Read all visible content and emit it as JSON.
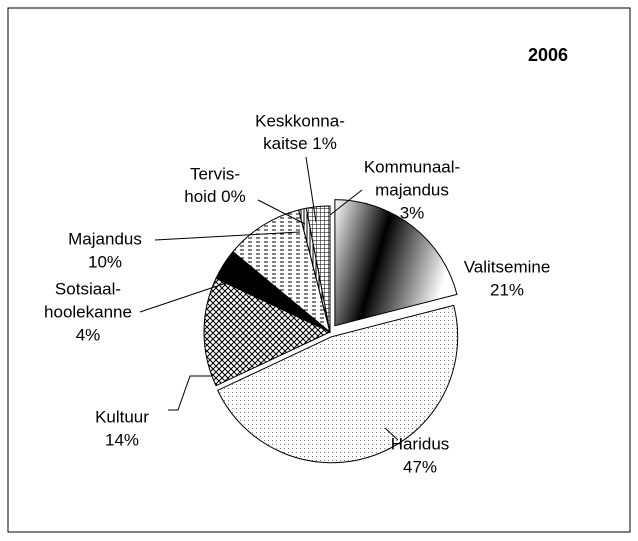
{
  "chart_data": {
    "type": "pie",
    "title": "2006",
    "categories": [
      [
        "Valitsemine"
      ],
      [
        "Haridus"
      ],
      [
        "Kultuur"
      ],
      [
        "Sotsiaal-",
        "hoolekanne"
      ],
      [
        "Majandus"
      ],
      [
        "Tervis-",
        "hoid"
      ],
      [
        "Keskkonna-",
        "kaitse"
      ],
      [
        "Kommunaal-",
        "majandus"
      ]
    ],
    "values": [
      21,
      47,
      14,
      4,
      10,
      0,
      1,
      3
    ],
    "value_labels": [
      "21%",
      "47%",
      "14%",
      "4%",
      "10%",
      "0%",
      "1%",
      "3%"
    ]
  }
}
